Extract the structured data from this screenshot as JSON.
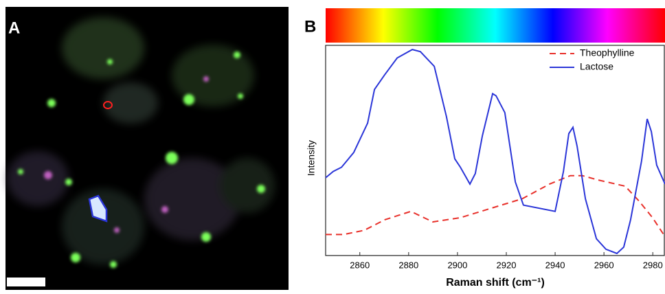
{
  "panel_labels": [
    "A",
    "B"
  ],
  "chart_data": {
    "type": "line",
    "x_label": "Raman shift (cm⁻¹)",
    "y_label": "Intensity",
    "xlim": [
      2846,
      2985
    ],
    "ylim": [
      0,
      1
    ],
    "xticks": [
      2860,
      2880,
      2900,
      2920,
      2940,
      2960,
      2980
    ],
    "legend": "upper right",
    "series": [
      {
        "name": "Theophylline",
        "color": "#e8302a",
        "dash": true,
        "x": [
          2846,
          2853.3,
          2861.8,
          2870.2,
          2880.9,
          2889.9,
          2901.2,
          2912.4,
          2926.5,
          2937.7,
          2946.2,
          2951.2,
          2957.4,
          2968.7,
          2974.3,
          2979.9,
          2985
        ],
        "values": [
          0.1,
          0.1,
          0.12,
          0.17,
          0.21,
          0.16,
          0.18,
          0.22,
          0.27,
          0.34,
          0.38,
          0.38,
          0.36,
          0.33,
          0.26,
          0.18,
          0.09
        ]
      },
      {
        "name": "Lactose",
        "color": "#2a35d8",
        "dash": false,
        "x": [
          2846,
          2849.1,
          2852.5,
          2857.5,
          2863.2,
          2866,
          2870.2,
          2875.3,
          2881.5,
          2884.8,
          2890.5,
          2895.5,
          2898.9,
          2901.2,
          2905.1,
          2907.3,
          2910.2,
          2914.4,
          2915.8,
          2919.4,
          2923.7,
          2927,
          2940,
          2943.4,
          2945.6,
          2947.3,
          2949,
          2952.4,
          2956.9,
          2960.8,
          2965.3,
          2968.1,
          2970.9,
          2975.4,
          2977.7,
          2979.4,
          2981.6,
          2985
        ],
        "values": [
          0.37,
          0.4,
          0.42,
          0.49,
          0.63,
          0.79,
          0.86,
          0.94,
          0.98,
          0.97,
          0.9,
          0.66,
          0.46,
          0.42,
          0.34,
          0.39,
          0.57,
          0.77,
          0.76,
          0.68,
          0.35,
          0.24,
          0.21,
          0.4,
          0.58,
          0.61,
          0.52,
          0.27,
          0.08,
          0.03,
          0.01,
          0.04,
          0.17,
          0.45,
          0.65,
          0.59,
          0.43,
          0.34
        ]
      }
    ]
  }
}
